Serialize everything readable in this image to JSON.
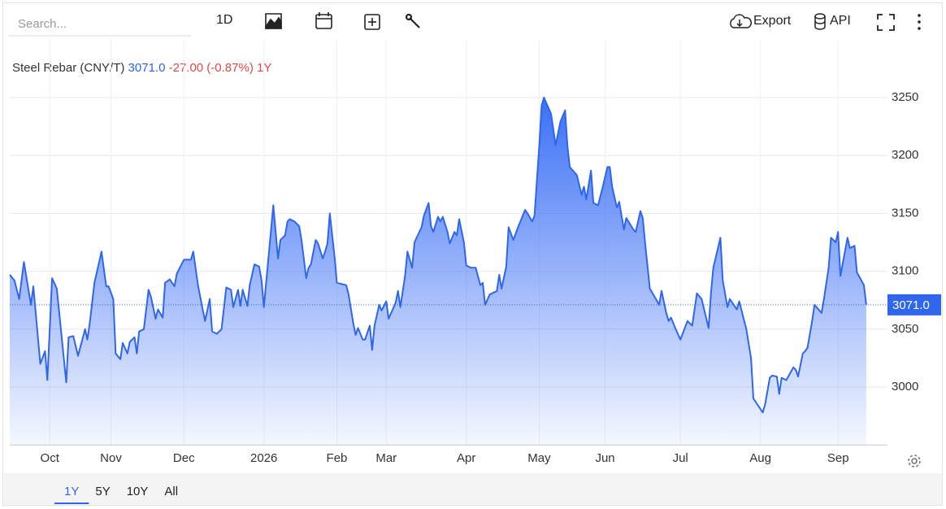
{
  "toolbar": {
    "search_placeholder": "Search...",
    "interval": "1D",
    "export": "Export",
    "api": "API"
  },
  "ranges": [
    "1Y",
    "5Y",
    "10Y",
    "All"
  ],
  "chart_data": {
    "type": "area",
    "title": "Steel Rebar (CNY/T)",
    "change": "-27.00 (-0.87%)",
    "period": "1Y",
    "reference_line": {
      "value": 3071,
      "label": "3071.0"
    },
    "series": [
      {
        "name": "Steel Rebar",
        "color": "#2f66eb",
        "x": [
          -17,
          -15,
          -13,
          -11,
          -8,
          -7,
          -4,
          -2,
          -1,
          1,
          3,
          7,
          8,
          10,
          12,
          15,
          16,
          17,
          19,
          22,
          24,
          25,
          27,
          28,
          30,
          31,
          33,
          34,
          36,
          37,
          38,
          40,
          42,
          43,
          45,
          46,
          48,
          49,
          51,
          53,
          54,
          57,
          60,
          61,
          63,
          65,
          66,
          68,
          69,
          71,
          73,
          75,
          77,
          78,
          80,
          81,
          82,
          84,
          85,
          87,
          89,
          90,
          91,
          93,
          95,
          97,
          98,
          100,
          101,
          102,
          104,
          106,
          107,
          109,
          110,
          111,
          113,
          114,
          116,
          117,
          118,
          119,
          121,
          122,
          126,
          127,
          129,
          130,
          131,
          133,
          134,
          136,
          137,
          138,
          140,
          141,
          143,
          144,
          147,
          148,
          149,
          151,
          152,
          154,
          155,
          158,
          159,
          161,
          162,
          163,
          165,
          166,
          167,
          169,
          170,
          172,
          173,
          174,
          176,
          177,
          179,
          181,
          183,
          184,
          185,
          187,
          190,
          191,
          192,
          194,
          195,
          197,
          199,
          202,
          203,
          205,
          206,
          208,
          209,
          210,
          213,
          215,
          217,
          219,
          220,
          221,
          224,
          226,
          227,
          228,
          230,
          231,
          233,
          235,
          237,
          238,
          239,
          241,
          242,
          244,
          245,
          248,
          249,
          251,
          252,
          253,
          255,
          257,
          259,
          260,
          262,
          263,
          264,
          266,
          268,
          271,
          273,
          275,
          277,
          280,
          281,
          282,
          285,
          286,
          288,
          289,
          292,
          293,
          296,
          298,
          299,
          300,
          303,
          304,
          306,
          307,
          309,
          310,
          311,
          313,
          316,
          317,
          318,
          320,
          321,
          322,
          324,
          325,
          328,
          329,
          331,
          332,
          334,
          335,
          336,
          339,
          340,
          342,
          343,
          346,
          347
        ],
        "values": [
          3097,
          3092,
          3076,
          3108,
          3071,
          3087,
          3020,
          3031,
          3006,
          3094,
          3085,
          3004,
          3043,
          3044,
          3027,
          3050,
          3041,
          3055,
          3090,
          3117,
          3087,
          3087,
          3076,
          3029,
          3024,
          3038,
          3029,
          3039,
          3043,
          3029,
          3048,
          3050,
          3084,
          3078,
          3059,
          3067,
          3060,
          3090,
          3093,
          3087,
          3098,
          3110,
          3110,
          3117,
          3088,
          3067,
          3057,
          3076,
          3048,
          3046,
          3050,
          3086,
          3084,
          3069,
          3084,
          3070,
          3084,
          3070,
          3088,
          3106,
          3104,
          3092,
          3069,
          3113,
          3157,
          3111,
          3127,
          3131,
          3143,
          3145,
          3143,
          3139,
          3127,
          3094,
          3103,
          3106,
          3127,
          3124,
          3111,
          3117,
          3124,
          3150,
          3113,
          3090,
          3088,
          3080,
          3055,
          3045,
          3051,
          3041,
          3041,
          3053,
          3032,
          3053,
          3071,
          3066,
          3074,
          3059,
          3073,
          3083,
          3069,
          3096,
          3117,
          3103,
          3125,
          3138,
          3148,
          3159,
          3139,
          3134,
          3147,
          3143,
          3147,
          3134,
          3124,
          3134,
          3131,
          3145,
          3125,
          3105,
          3103,
          3103,
          3088,
          3090,
          3071,
          3080,
          3083,
          3097,
          3085,
          3104,
          3138,
          3127,
          3138,
          3153,
          3150,
          3143,
          3148,
          3208,
          3243,
          3250,
          3236,
          3209,
          3229,
          3239,
          3208,
          3190,
          3183,
          3166,
          3173,
          3162,
          3187,
          3159,
          3157,
          3173,
          3190,
          3190,
          3173,
          3155,
          3160,
          3136,
          3146,
          3136,
          3134,
          3152,
          3146,
          3124,
          3085,
          3078,
          3071,
          3083,
          3064,
          3057,
          3060,
          3050,
          3041,
          3057,
          3053,
          3081,
          3076,
          3051,
          3081,
          3103,
          3129,
          3092,
          3069,
          3076,
          3067,
          3074,
          3050,
          3025,
          2990,
          2987,
          2978,
          2985,
          3008,
          3010,
          3009,
          2994,
          3008,
          3006,
          3017,
          3015,
          3009,
          3029,
          3031,
          3034,
          3057,
          3071,
          3064,
          3076,
          3103,
          3129,
          3125,
          3134,
          3096,
          3129,
          3120,
          3122,
          3099,
          3088,
          3071
        ]
      }
    ],
    "xlim": [
      -17,
      356
    ],
    "xticks": [
      {
        "value": 0,
        "label": "Oct"
      },
      {
        "value": 26,
        "label": "Nov"
      },
      {
        "value": 57,
        "label": "Dec"
      },
      {
        "value": 91,
        "label": "2026"
      },
      {
        "value": 122,
        "label": "Feb"
      },
      {
        "value": 143,
        "label": "Mar"
      },
      {
        "value": 177,
        "label": "Apr"
      },
      {
        "value": 208,
        "label": "May"
      },
      {
        "value": 236,
        "label": "Jun"
      },
      {
        "value": 268,
        "label": "Jul"
      },
      {
        "value": 302,
        "label": "Aug"
      },
      {
        "value": 335,
        "label": "Sep"
      }
    ],
    "ylim": [
      2950,
      3300
    ],
    "yticks": [
      3000,
      3050,
      3100,
      3150,
      3200,
      3250
    ],
    "grid": true
  }
}
